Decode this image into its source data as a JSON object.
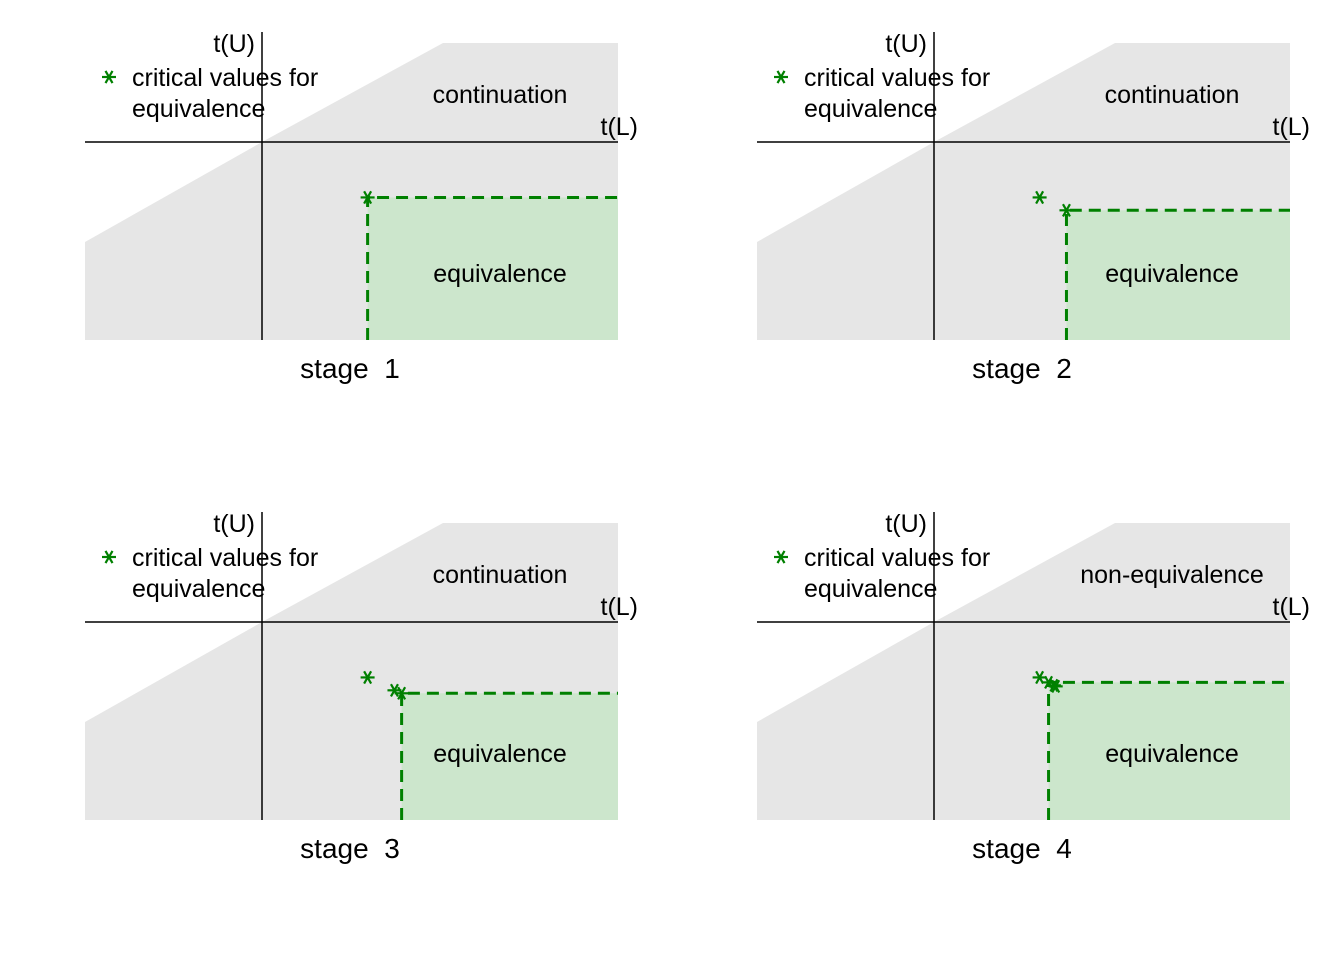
{
  "colors": {
    "grey_region": "#e6e6e6",
    "equivalence_region": "#cce6cc",
    "critical_marker": "#008000",
    "axis": "#000000"
  },
  "chart_data": [
    {
      "type": "area",
      "title": "stage  1",
      "xlabel": "t(L)",
      "ylabel": "t(U)",
      "legend": {
        "label_line1": "critical values for",
        "label_line2": "equivalence",
        "position": "top-left"
      },
      "upper_region_label": "continuation",
      "equivalence_label": "equivalence",
      "grid": false,
      "critical_values": [
        [
          0.59,
          -0.56
        ]
      ],
      "equivalence_corner": [
        0.59,
        -0.56
      ]
    },
    {
      "type": "area",
      "title": "stage  2",
      "xlabel": "t(L)",
      "ylabel": "t(U)",
      "legend": {
        "label_line1": "critical values for",
        "label_line2": "equivalence",
        "position": "top-left"
      },
      "upper_region_label": "continuation",
      "equivalence_label": "equivalence",
      "grid": false,
      "critical_values": [
        [
          0.59,
          -0.56
        ],
        [
          0.74,
          -0.69
        ]
      ],
      "equivalence_corner": [
        0.74,
        -0.69
      ]
    },
    {
      "type": "area",
      "title": "stage  3",
      "xlabel": "t(L)",
      "ylabel": "t(U)",
      "legend": {
        "label_line1": "critical values for",
        "label_line2": "equivalence",
        "position": "top-left"
      },
      "upper_region_label": "continuation",
      "equivalence_label": "equivalence",
      "grid": false,
      "critical_values": [
        [
          0.59,
          -0.56
        ],
        [
          0.74,
          -0.69
        ],
        [
          0.78,
          -0.72
        ]
      ],
      "equivalence_corner": [
        0.78,
        -0.72
      ]
    },
    {
      "type": "area",
      "title": "stage  4",
      "xlabel": "t(L)",
      "ylabel": "t(U)",
      "legend": {
        "label_line1": "critical values for",
        "label_line2": "equivalence",
        "position": "top-left"
      },
      "upper_region_label": "non-equivalence",
      "equivalence_label": "equivalence",
      "grid": false,
      "critical_values": [
        [
          0.59,
          -0.56
        ],
        [
          0.64,
          -0.61
        ],
        [
          0.67,
          -0.64
        ],
        [
          0.68,
          -0.65
        ]
      ],
      "equivalence_corner": [
        0.64,
        -0.61
      ]
    }
  ]
}
